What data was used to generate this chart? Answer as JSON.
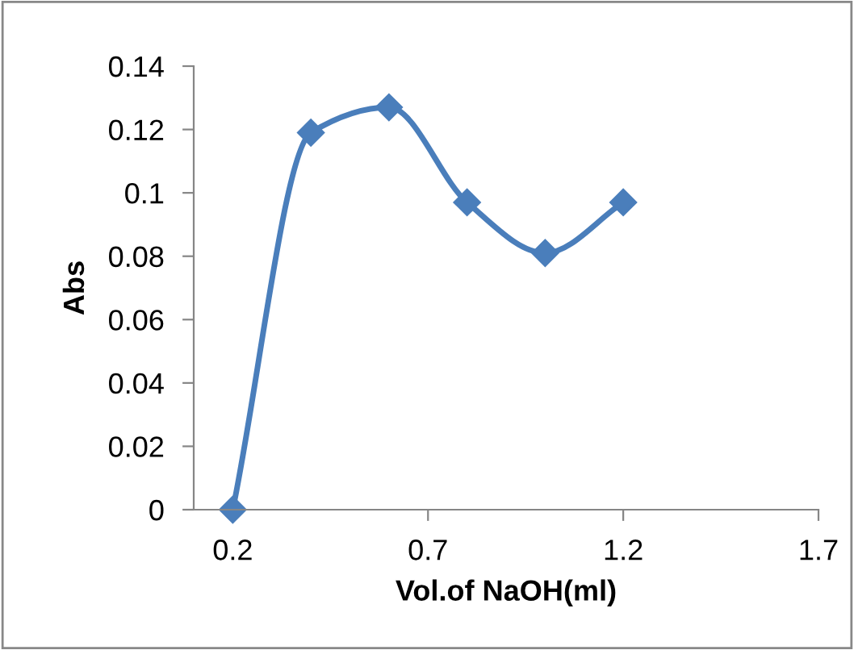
{
  "chart_data": {
    "type": "line",
    "xlabel": "Vol.of NaOH(ml)",
    "ylabel": "Abs",
    "x": [
      0.2,
      0.4,
      0.6,
      0.8,
      1.0,
      1.2
    ],
    "series": [
      {
        "color": "#4a7ebb",
        "values": [
          0,
          0.119,
          0.127,
          0.097,
          0.081,
          0.097
        ]
      }
    ],
    "xlim": [
      0.1,
      1.7
    ],
    "xticks": [
      0.2,
      0.7,
      1.2,
      1.7
    ],
    "ylim": [
      0,
      0.14
    ],
    "yticks": [
      0,
      0.02,
      0.04,
      0.06,
      0.08,
      0.1,
      0.12,
      0.14
    ],
    "marker": "diamond",
    "line_style": "solid",
    "grid": false,
    "legend": false
  }
}
